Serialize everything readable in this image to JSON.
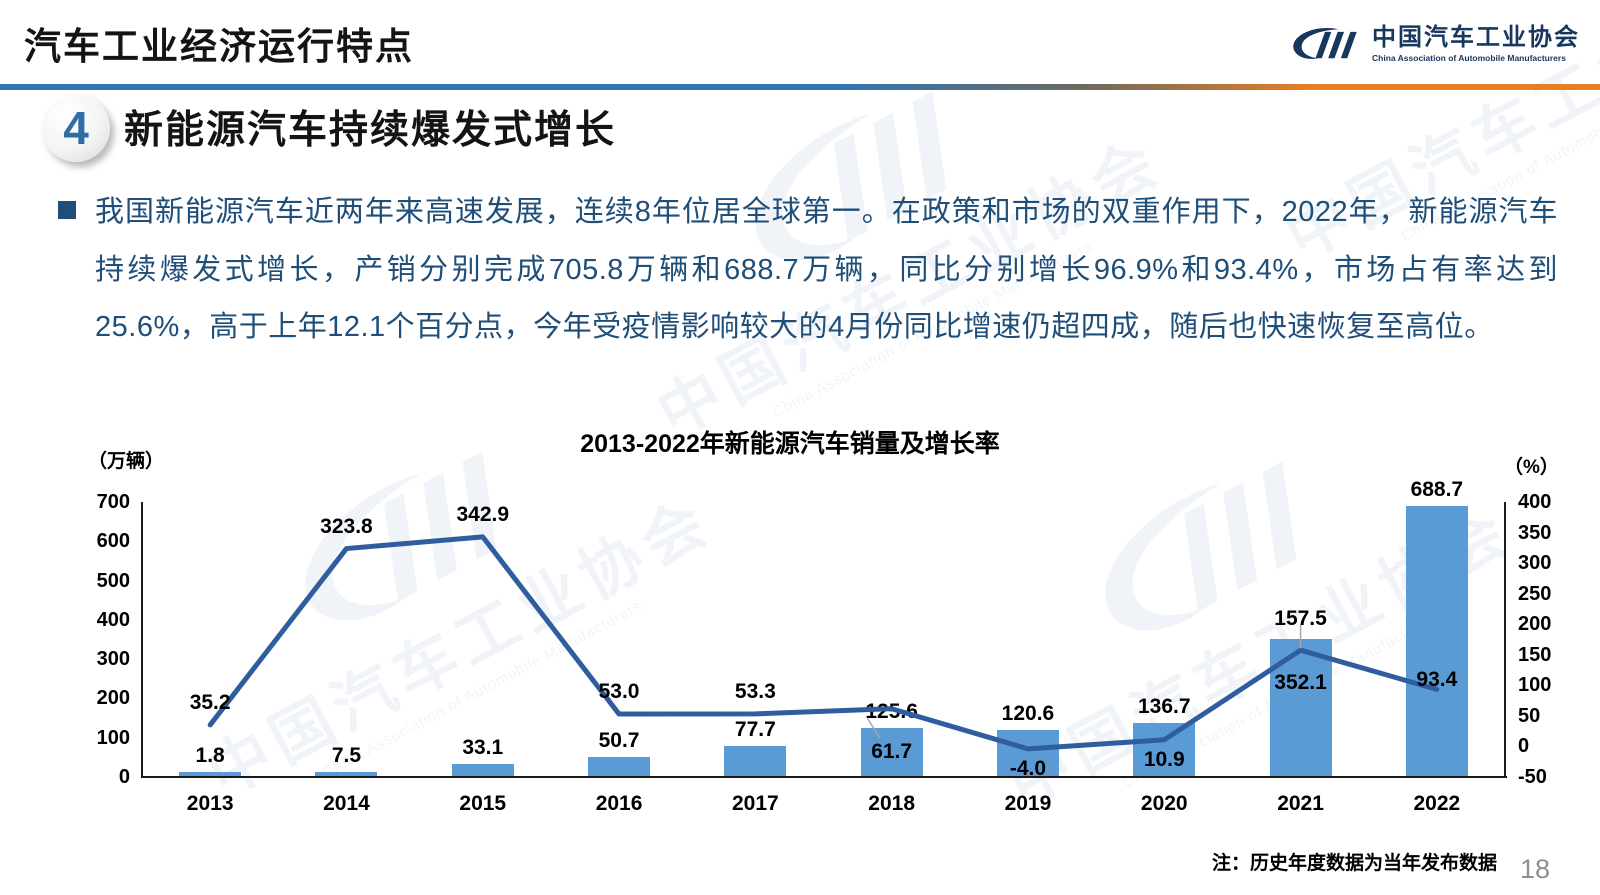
{
  "header": {
    "title": "汽车工业经济运行特点",
    "logo": {
      "org_cn": "中国汽车工业协会",
      "org_en": "China Association of Automobile Manufacturers"
    }
  },
  "section": {
    "number": "4",
    "title": "新能源汽车持续爆发式增长"
  },
  "body": {
    "paragraph": "我国新能源汽车近两年来高速发展，连续8年位居全球第一。在政策和市场的双重作用下，2022年，新能源汽车持续爆发式增长，产销分别完成705.8万辆和688.7万辆，同比分别增长96.9%和93.4%，市场占有率达到25.6%，高于上年12.1个百分点，今年受疫情影响较大的4月份同比增速仍超四成，随后也快速恢复至高位。"
  },
  "chart_data": {
    "type": "bar+line",
    "title": "2013-2022年新能源汽车销量及增长率",
    "categories": [
      "2013",
      "2014",
      "2015",
      "2016",
      "2017",
      "2018",
      "2019",
      "2020",
      "2021",
      "2022"
    ],
    "series": [
      {
        "name": "销量",
        "type": "bar",
        "axis": "left",
        "values": [
          1.8,
          7.5,
          33.1,
          50.7,
          77.7,
          125.6,
          120.6,
          136.7,
          352.1,
          688.7
        ],
        "labels": [
          "1.8",
          "7.5",
          "33.1",
          "50.7",
          "77.7",
          "125.6",
          "120.6",
          "136.7",
          "352.1",
          "688.7"
        ],
        "color": "#5B9BD5",
        "label_pos": [
          "above",
          "above",
          "above",
          "above",
          "above",
          "above",
          "above",
          "above",
          "inside",
          "above"
        ]
      },
      {
        "name": "增长率",
        "type": "line",
        "axis": "right",
        "values": [
          35.2,
          323.8,
          342.9,
          53.0,
          53.3,
          61.7,
          -4.0,
          10.9,
          157.5,
          93.4
        ],
        "labels": [
          "35.2",
          "323.8",
          "342.9",
          "53.0",
          "53.3",
          "61.7",
          "-4.0",
          "10.9",
          "157.5",
          "93.4"
        ],
        "color": "#2F5D9E",
        "label_pos": [
          "above",
          "above",
          "above",
          "above",
          "above",
          "inside-bar",
          "below",
          "below",
          "above-bar",
          "near"
        ]
      }
    ],
    "left_axis": {
      "unit": "（万辆）",
      "min": 0,
      "max": 700,
      "step": 100
    },
    "right_axis": {
      "unit": "（%）",
      "min": -50,
      "max": 400,
      "step": 50
    },
    "grid": false,
    "legend": "none"
  },
  "footer": {
    "note": "注：历史年度数据为当年发布数据",
    "page_number": "18"
  },
  "watermark": {
    "text": "中国汽车工业协会",
    "subtext": "China Association of Automobile Manufacturers"
  },
  "colors": {
    "accent_blue": "#2E75B6",
    "accent_orange": "#E87E23",
    "bar": "#5B9BD5",
    "line": "#2F5D9E",
    "body_text": "#1F4E79",
    "logo_navy": "#17375E"
  }
}
